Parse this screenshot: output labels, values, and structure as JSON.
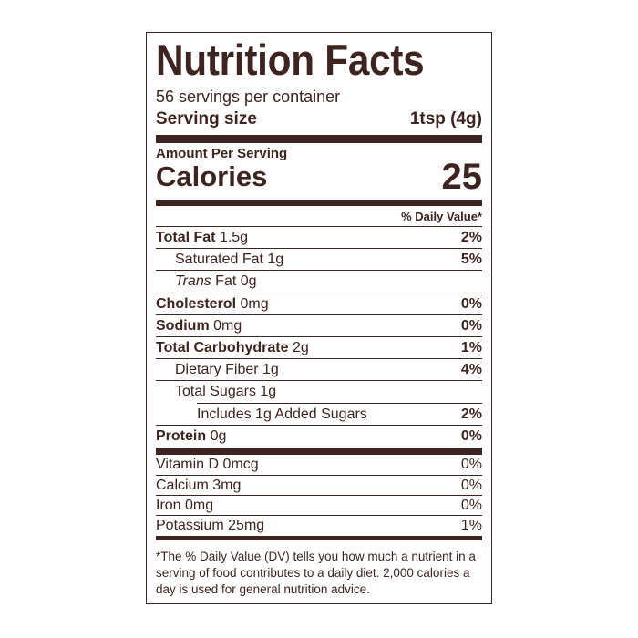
{
  "title": "Nutrition Facts",
  "servings": "56 servings per container",
  "serving_size": {
    "label": "Serving size",
    "value": "1tsp (4g)"
  },
  "amount_per_serving": "Amount Per Serving",
  "calories": {
    "label": "Calories",
    "value": 25
  },
  "daily_value_header": "% Daily Value*",
  "nutrients": [
    {
      "name": "Total Fat",
      "amount": "1.5g",
      "dv": "2%",
      "bold": true,
      "indent": 0
    },
    {
      "name": "Saturated Fat",
      "amount": "1g",
      "dv": "5%",
      "bold": false,
      "indent": 1
    },
    {
      "prefix": "Trans",
      "name": "Fat",
      "amount": "0g",
      "bold": false,
      "indent": 1
    },
    {
      "name": "Cholesterol",
      "amount": "0mg",
      "dv": "0%",
      "bold": true,
      "indent": 0
    },
    {
      "name": "Sodium",
      "amount": "0mg",
      "dv": "0%",
      "bold": true,
      "indent": 0
    },
    {
      "name": "Total Carbohydrate",
      "amount": "2g",
      "dv": "1%",
      "bold": true,
      "indent": 0
    },
    {
      "name": "Dietary Fiber",
      "amount": "1g",
      "dv": "4%",
      "bold": false,
      "indent": 1
    },
    {
      "name": "Total Sugars",
      "amount": "1g",
      "bold": false,
      "indent": 1
    },
    {
      "name": "Includes 1g Added Sugars",
      "dv": "2%",
      "bold": false,
      "indent": 2
    },
    {
      "name": "Protein",
      "amount": "0g",
      "dv": "0%",
      "bold": true,
      "indent": 0
    }
  ],
  "vitamins": [
    {
      "name": "Vitamin D",
      "amount": "0mcg",
      "dv": "0%"
    },
    {
      "name": "Calcium",
      "amount": "3mg",
      "dv": "0%"
    },
    {
      "name": "Iron",
      "amount": "0mg",
      "dv": "0%"
    },
    {
      "name": "Potassium",
      "amount": "25mg",
      "dv": "1%"
    }
  ],
  "footnote": "*The % Daily Value (DV) tells you how much a nutrient in a serving of food contributes to a daily diet. 2,000 calories a day is used for general nutrition advice."
}
